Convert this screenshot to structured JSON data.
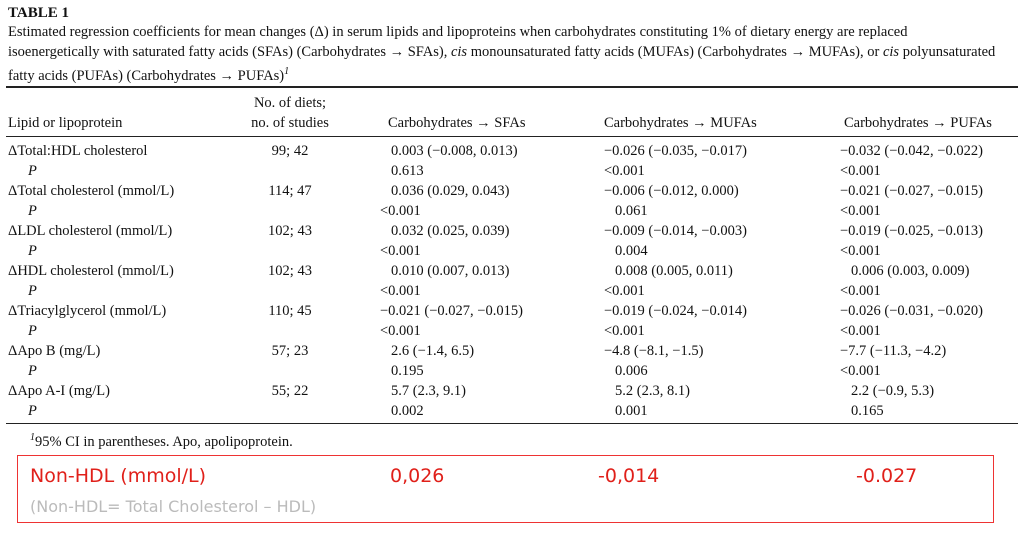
{
  "table_label": "TABLE 1",
  "caption": [
    "Estimated regression coefficients for mean changes (Δ) in serum lipids and lipoproteins when carbohydrates constituting 1% of dietary energy are replaced isoenergetically with saturated fatty acids (SFAs) (Carbohydrates → SFAs), ",
    "cis",
    " monounsaturated fatty acids (MUFAs) (Carbohydrates → MUFAs), or ",
    "cis",
    " polyunsaturated fatty acids (PUFAs) (Carbohydrates → PUFAs)",
    "1"
  ],
  "header": {
    "label": "Lipid or lipoprotein",
    "n": [
      "No. of diets;",
      "no. of studies"
    ],
    "columns": [
      "Carbohydrates → SFAs",
      "Carbohydrates → MUFAs",
      "Carbohydrates → PUFAs"
    ]
  },
  "rows": [
    {
      "label": "ΔTotal:HDL cholesterol",
      "n": "99; 42",
      "values": [
        "0.003 (−0.008, 0.013)",
        "−0.026 (−0.035, −0.017)",
        "−0.032 (−0.042, −0.022)"
      ],
      "p_label": "P",
      "p_values": [
        "0.613",
        "<0.001",
        "<0.001"
      ]
    },
    {
      "label": "ΔTotal cholesterol (mmol/L)",
      "n": "114; 47",
      "values": [
        "0.036 (0.029, 0.043)",
        "−0.006 (−0.012, 0.000)",
        "−0.021 (−0.027, −0.015)"
      ],
      "p_label": "P",
      "p_values": [
        "<0.001",
        "0.061",
        "<0.001"
      ]
    },
    {
      "label": "ΔLDL cholesterol (mmol/L)",
      "n": "102; 43",
      "values": [
        "0.032 (0.025, 0.039)",
        "−0.009 (−0.014, −0.003)",
        "−0.019 (−0.025, −0.013)"
      ],
      "p_label": "P",
      "p_values": [
        "<0.001",
        "0.004",
        "<0.001"
      ]
    },
    {
      "label": "ΔHDL cholesterol (mmol/L)",
      "n": "102; 43",
      "values": [
        "0.010 (0.007, 0.013)",
        "0.008 (0.005, 0.011)",
        "0.006 (0.003, 0.009)"
      ],
      "p_label": "P",
      "p_values": [
        "<0.001",
        "<0.001",
        "<0.001"
      ]
    },
    {
      "label": "ΔTriacylglycerol (mmol/L)",
      "n": "110; 45",
      "values": [
        "−0.021 (−0.027, −0.015)",
        "−0.019 (−0.024, −0.014)",
        "−0.026 (−0.031, −0.020)"
      ],
      "p_label": "P",
      "p_values": [
        "<0.001",
        "<0.001",
        "<0.001"
      ]
    },
    {
      "label": "ΔApo B (mg/L)",
      "n": "57; 23",
      "values": [
        "2.6 (−1.4, 6.5)",
        "−4.8 (−8.1, −1.5)",
        "−7.7 (−11.3, −4.2)"
      ],
      "p_label": "P",
      "p_values": [
        "0.195",
        "0.006",
        "<0.001"
      ]
    },
    {
      "label": "ΔApo A-I (mg/L)",
      "n": "55; 22",
      "values": [
        "5.7 (2.3, 9.1)",
        "5.2 (2.3, 8.1)",
        "2.2 (−0.9, 5.3)"
      ],
      "p_label": "P",
      "p_values": [
        "0.002",
        "0.001",
        "0.165"
      ]
    }
  ],
  "footnote": {
    "marker": "1",
    "text": "95% CI in parentheses. Apo, apolipoprotein."
  },
  "note_box": {
    "label": "Non-HDL (mmol/L)",
    "values": [
      "0,026",
      "-0,014",
      "-0.027"
    ],
    "definition": "(Non-HDL= Total Cholesterol – HDL)"
  }
}
